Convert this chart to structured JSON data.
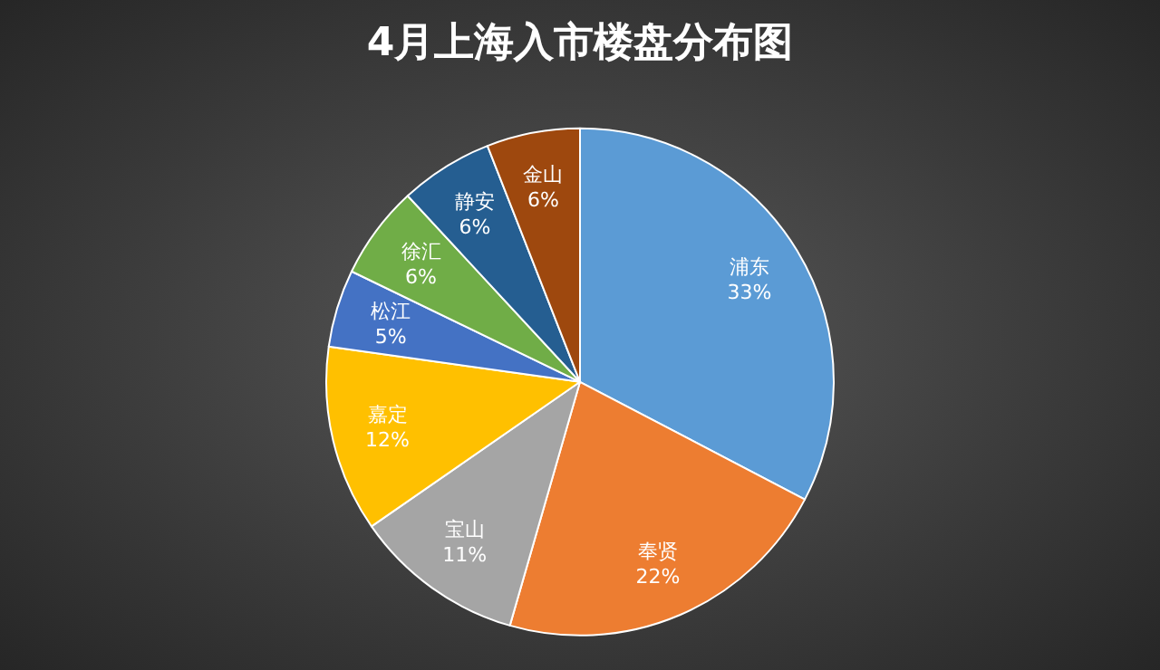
{
  "chart_data": {
    "type": "pie",
    "title": "4月上海入市楼盘分布图",
    "categories": [
      "浦东",
      "奉贤",
      "宝山",
      "嘉定",
      "松江",
      "徐汇",
      "静安",
      "金山"
    ],
    "values": [
      33,
      22,
      11,
      12,
      5,
      6,
      6,
      6
    ],
    "value_labels": [
      "33%",
      "22%",
      "11%",
      "12%",
      "5%",
      "6%",
      "6%",
      "6%"
    ],
    "colors": [
      "#5b9bd5",
      "#ed7d31",
      "#a5a5a5",
      "#ffc000",
      "#4472c4",
      "#70ad47",
      "#255e91",
      "#9e480e"
    ],
    "legend": false
  }
}
